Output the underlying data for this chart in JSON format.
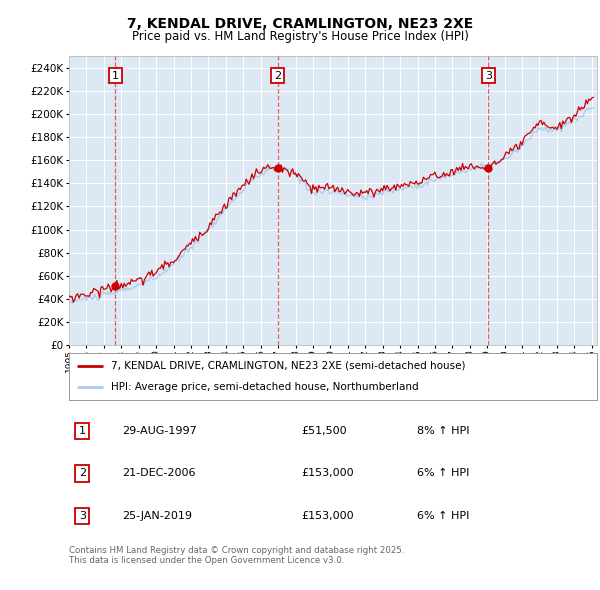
{
  "title": "7, KENDAL DRIVE, CRAMLINGTON, NE23 2XE",
  "subtitle": "Price paid vs. HM Land Registry's House Price Index (HPI)",
  "property_label": "7, KENDAL DRIVE, CRAMLINGTON, NE23 2XE (semi-detached house)",
  "hpi_label": "HPI: Average price, semi-detached house, Northumberland",
  "sale_events": [
    {
      "num": 1,
      "date": "29-AUG-1997",
      "price": 51500,
      "hpi_pct": "8% ↑ HPI",
      "year": 1997.66
    },
    {
      "num": 2,
      "date": "21-DEC-2006",
      "price": 153000,
      "hpi_pct": "6% ↑ HPI",
      "year": 2006.97
    },
    {
      "num": 3,
      "date": "25-JAN-2019",
      "price": 153000,
      "hpi_pct": "6% ↑ HPI",
      "year": 2019.07
    }
  ],
  "footnote": "Contains HM Land Registry data © Crown copyright and database right 2025.\nThis data is licensed under the Open Government Licence v3.0.",
  "property_color": "#cc0000",
  "hpi_color": "#aaccee",
  "plot_bg_color": "#dce9f5",
  "ylim": [
    0,
    250000
  ],
  "xstart": 1995,
  "xend": 2025,
  "years_anchors": [
    1995,
    1996,
    1997,
    1998,
    1999,
    2000,
    2001,
    2002,
    2003,
    2004,
    2005,
    2006,
    2007,
    2008,
    2009,
    2010,
    2011,
    2012,
    2013,
    2014,
    2015,
    2016,
    2017,
    2018,
    2019,
    2020,
    2021,
    2022,
    2023,
    2024,
    2025
  ],
  "hpi_anchors": [
    38000,
    40000,
    43000,
    47000,
    52000,
    58000,
    70000,
    85000,
    100000,
    118000,
    135000,
    148000,
    155000,
    148000,
    132000,
    133000,
    130000,
    128000,
    132000,
    135000,
    138000,
    143000,
    148000,
    152000,
    155000,
    160000,
    172000,
    188000,
    185000,
    195000,
    205000
  ],
  "prop_anchors_x": [
    1995,
    1996,
    1997.66,
    1999,
    2001,
    2003,
    2004,
    2005,
    2006,
    2006.97,
    2008,
    2009,
    2010,
    2011,
    2012,
    2013,
    2014,
    2015,
    2016,
    2017,
    2018,
    2019.07,
    2020,
    2021,
    2022,
    2023,
    2024,
    2025
  ],
  "prop_anchors_y": [
    41000,
    44000,
    51500,
    55000,
    73000,
    103000,
    122000,
    138000,
    152000,
    153000,
    148000,
    135000,
    136000,
    133000,
    131000,
    135000,
    138000,
    141000,
    146000,
    150000,
    155000,
    153000,
    162000,
    175000,
    192000,
    188000,
    198000,
    215000
  ]
}
